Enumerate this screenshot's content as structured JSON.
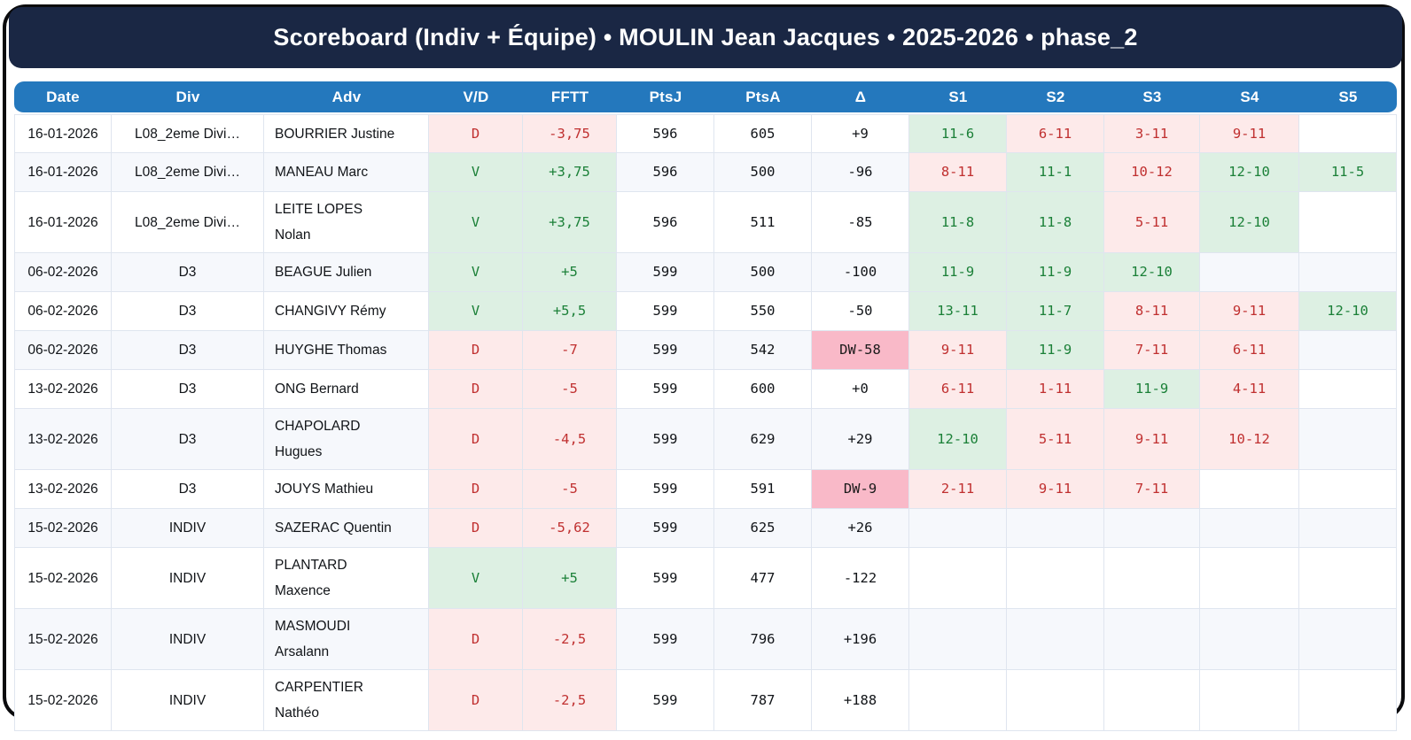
{
  "title": "Scoreboard (Indiv + Équipe) • MOULIN Jean Jacques • 2025-2026 • phase_2",
  "colors": {
    "frame": "#0b0b0d",
    "title_bar_bg": "#1a2744",
    "title_text": "#ffffff",
    "header_bg": "#2478bd",
    "header_text": "#ffffff",
    "grid_line": "#dfe5ef",
    "row_stripe": "#f6f8fc",
    "win_bg": "#ddf0e3",
    "win_text": "#1b8038",
    "loss_bg": "#fdeaea",
    "loss_text": "#c03030",
    "walkover_bg": "#f9b9c8",
    "walkover_text": "#1a1a1a"
  },
  "table": {
    "columns": [
      "Date",
      "Div",
      "Adv",
      "V/D",
      "FFTT",
      "PtsJ",
      "PtsA",
      "Δ",
      "S1",
      "S2",
      "S3",
      "S4",
      "S5"
    ],
    "rows": [
      {
        "date": "16-01-2026",
        "div": "L08_2eme Divi…",
        "adv": "BOURRIER Justine",
        "vd": "D",
        "fftt": "-3,75",
        "ptsj": "596",
        "ptsa": "605",
        "delta": "+9",
        "sets": [
          "11-6",
          "6-11",
          "3-11",
          "9-11",
          ""
        ]
      },
      {
        "date": "16-01-2026",
        "div": "L08_2eme Divi…",
        "adv": "MANEAU Marc",
        "vd": "V",
        "fftt": "+3,75",
        "ptsj": "596",
        "ptsa": "500",
        "delta": "-96",
        "sets": [
          "8-11",
          "11-1",
          "10-12",
          "12-10",
          "11-5"
        ]
      },
      {
        "date": "16-01-2026",
        "div": "L08_2eme Divi…",
        "adv": "LEITE LOPES Nolan",
        "vd": "V",
        "fftt": "+3,75",
        "ptsj": "596",
        "ptsa": "511",
        "delta": "-85",
        "sets": [
          "11-8",
          "11-8",
          "5-11",
          "12-10",
          ""
        ]
      },
      {
        "date": "06-02-2026",
        "div": "D3",
        "adv": "BEAGUE Julien",
        "vd": "V",
        "fftt": "+5",
        "ptsj": "599",
        "ptsa": "500",
        "delta": "-100",
        "sets": [
          "11-9",
          "11-9",
          "12-10",
          "",
          ""
        ]
      },
      {
        "date": "06-02-2026",
        "div": "D3",
        "adv": "CHANGIVY Rémy",
        "vd": "V",
        "fftt": "+5,5",
        "ptsj": "599",
        "ptsa": "550",
        "delta": "-50",
        "sets": [
          "13-11",
          "11-7",
          "8-11",
          "9-11",
          "12-10"
        ]
      },
      {
        "date": "06-02-2026",
        "div": "D3",
        "adv": "HUYGHE Thomas",
        "vd": "D",
        "fftt": "-7",
        "ptsj": "599",
        "ptsa": "542",
        "delta": "DW-58",
        "sets": [
          "9-11",
          "11-9",
          "7-11",
          "6-11",
          ""
        ]
      },
      {
        "date": "13-02-2026",
        "div": "D3",
        "adv": "ONG Bernard",
        "vd": "D",
        "fftt": "-5",
        "ptsj": "599",
        "ptsa": "600",
        "delta": "+0",
        "sets": [
          "6-11",
          "1-11",
          "11-9",
          "4-11",
          ""
        ]
      },
      {
        "date": "13-02-2026",
        "div": "D3",
        "adv": "CHAPOLARD Hugues",
        "vd": "D",
        "fftt": "-4,5",
        "ptsj": "599",
        "ptsa": "629",
        "delta": "+29",
        "sets": [
          "12-10",
          "5-11",
          "9-11",
          "10-12",
          ""
        ]
      },
      {
        "date": "13-02-2026",
        "div": "D3",
        "adv": "JOUYS Mathieu",
        "vd": "D",
        "fftt": "-5",
        "ptsj": "599",
        "ptsa": "591",
        "delta": "DW-9",
        "sets": [
          "2-11",
          "9-11",
          "7-11",
          "",
          ""
        ]
      },
      {
        "date": "15-02-2026",
        "div": "INDIV",
        "adv": "SAZERAC Quentin",
        "vd": "D",
        "fftt": "-5,62",
        "ptsj": "599",
        "ptsa": "625",
        "delta": "+26",
        "sets": [
          "",
          "",
          "",
          "",
          ""
        ]
      },
      {
        "date": "15-02-2026",
        "div": "INDIV",
        "adv": "PLANTARD Maxence",
        "vd": "V",
        "fftt": "+5",
        "ptsj": "599",
        "ptsa": "477",
        "delta": "-122",
        "sets": [
          "",
          "",
          "",
          "",
          ""
        ]
      },
      {
        "date": "15-02-2026",
        "div": "INDIV",
        "adv": "MASMOUDI Arsalann",
        "vd": "D",
        "fftt": "-2,5",
        "ptsj": "599",
        "ptsa": "796",
        "delta": "+196",
        "sets": [
          "",
          "",
          "",
          "",
          ""
        ]
      },
      {
        "date": "15-02-2026",
        "div": "INDIV",
        "adv": "CARPENTIER Nathéo",
        "vd": "D",
        "fftt": "-2,5",
        "ptsj": "599",
        "ptsa": "787",
        "delta": "+188",
        "sets": [
          "",
          "",
          "",
          "",
          ""
        ]
      }
    ]
  }
}
